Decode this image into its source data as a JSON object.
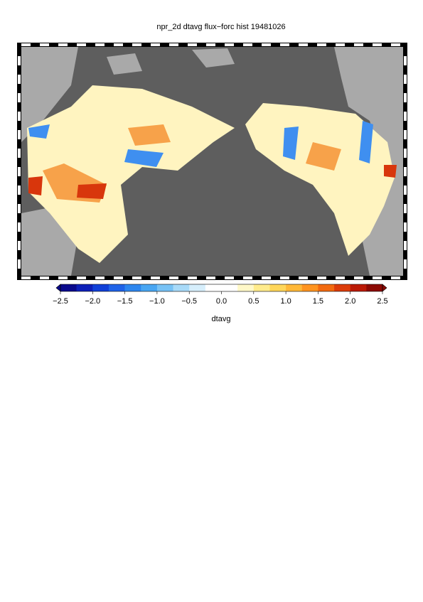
{
  "title": "npr_2d dtavg flux−forc hist 19481026",
  "colorbar": {
    "label": "dtavg",
    "ticks": [
      {
        "value": -2.5,
        "label": "−2.5"
      },
      {
        "value": -2.0,
        "label": "−2.0"
      },
      {
        "value": -1.5,
        "label": "−1.5"
      },
      {
        "value": -1.0,
        "label": "−1.0"
      },
      {
        "value": -0.5,
        "label": "−0.5"
      },
      {
        "value": 0.0,
        "label": "0.0"
      },
      {
        "value": 0.5,
        "label": "0.5"
      },
      {
        "value": 1.0,
        "label": "1.0"
      },
      {
        "value": 1.5,
        "label": "1.5"
      },
      {
        "value": 2.0,
        "label": "2.0"
      },
      {
        "value": 2.5,
        "label": "2.5"
      }
    ],
    "colors": [
      "#0a0a8c",
      "#0d1fb8",
      "#1040d8",
      "#1f63e8",
      "#2d86ee",
      "#48a6f2",
      "#77c2f5",
      "#a8daf8",
      "#d6eefb",
      "#ffffff",
      "#ffffff",
      "#fff8c8",
      "#ffeb8c",
      "#ffd659",
      "#ffb838",
      "#ff9420",
      "#f26a10",
      "#dc3c0a",
      "#bb1a06",
      "#8c0a04"
    ]
  }
}
